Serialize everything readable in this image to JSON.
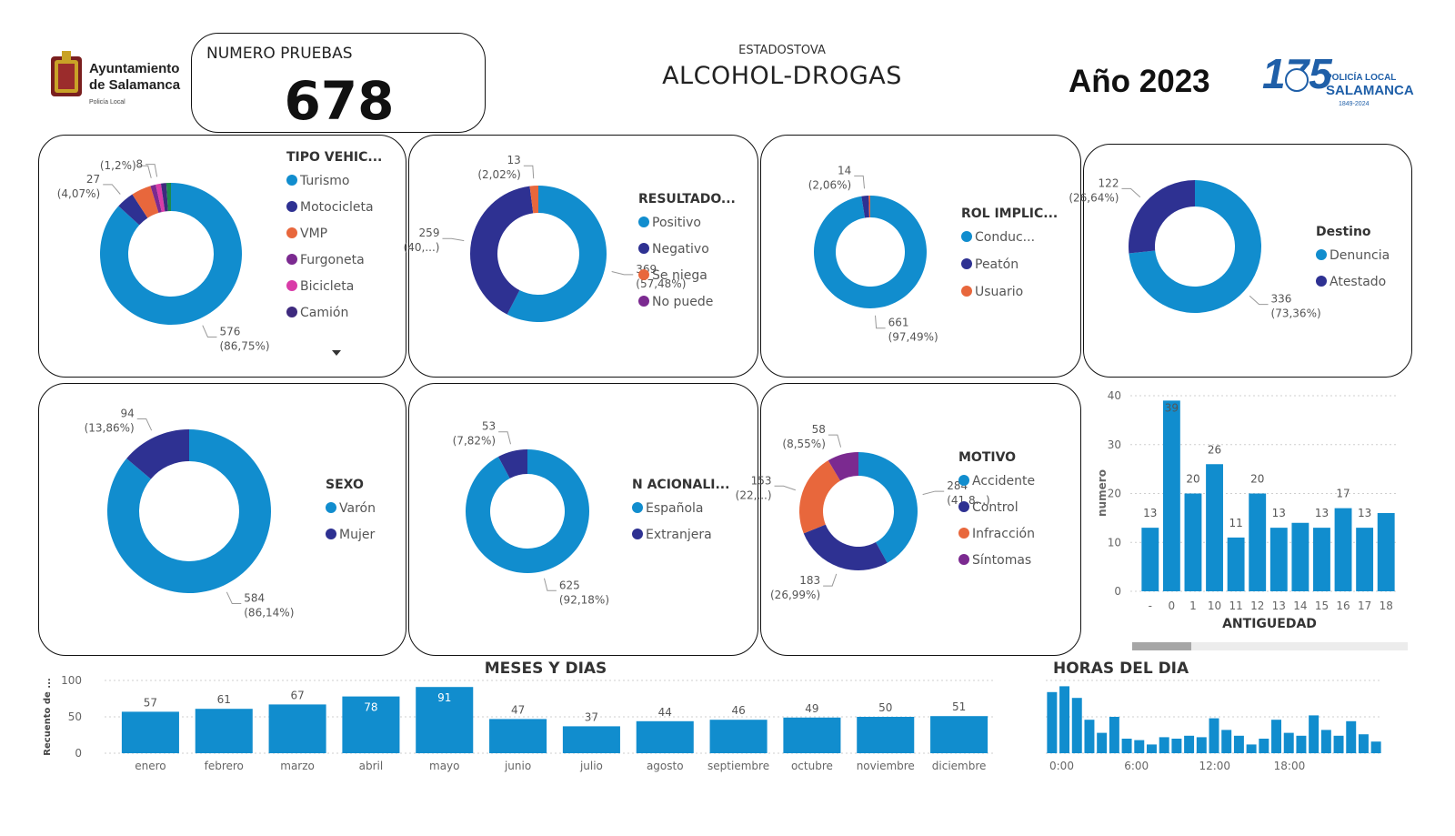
{
  "header": {
    "org_line1": "Ayuntamiento",
    "org_line2": "de Salamanca",
    "org_line3": "Policía Local",
    "kpi_label": "NUMERO PRUEBAS",
    "kpi_value": "678",
    "subtitle": "ESTADOSTOVA",
    "title": "ALCOHOL-DROGAS",
    "year": "Año 2023",
    "right_logo_line1": "POLICÍA LOCAL",
    "right_logo_line2": "SALAMANCA",
    "right_logo_line3": "1849-2024",
    "right_logo_number": "175"
  },
  "colors": {
    "blue": "#118DCE",
    "navy": "#2E3192",
    "orange": "#E8673C",
    "purple": "#7B2A90",
    "pink": "#D93CA8",
    "dark_purple": "#3E2A7E",
    "green": "#1F8A4C"
  },
  "chart_data": [
    {
      "type": "pie",
      "id": "tipo",
      "legend_title": "TIPO VEHIC...",
      "slices": [
        {
          "name": "Turismo",
          "value": 576,
          "label": "576",
          "pct": "(86,75%)",
          "color": "#118DCE"
        },
        {
          "name": "Motocicleta",
          "value": 27,
          "label": "27",
          "pct": "(4,07%)",
          "color": "#2E3192"
        },
        {
          "name": "VMP",
          "value": 30,
          "label": "",
          "pct": "",
          "color": "#E8673C"
        },
        {
          "name": "Furgoneta",
          "value": 8,
          "label": "(1,2%)",
          "pct": "",
          "color": "#7B2A90"
        },
        {
          "name": "Bicicleta",
          "value": 8,
          "label": "8",
          "pct": "",
          "color": "#D93CA8"
        },
        {
          "name": "Camión",
          "value": 8,
          "label": "",
          "pct": "",
          "color": "#3E2A7E"
        },
        {
          "name": "",
          "value": 7,
          "label": "",
          "pct": "",
          "color": "#1F8A4C"
        }
      ],
      "legend": [
        "Turismo",
        "Motocicleta",
        "VMP",
        "Furgoneta",
        "Bicicleta",
        "Camión"
      ]
    },
    {
      "type": "pie",
      "id": "resultado",
      "legend_title": "RESULTADO...",
      "slices": [
        {
          "name": "Positivo",
          "value": 369,
          "label": "369",
          "pct": "(57,48%)",
          "color": "#118DCE"
        },
        {
          "name": "Negativo",
          "value": 259,
          "label": "259",
          "pct": "(40,...)",
          "color": "#2E3192"
        },
        {
          "name": "Se niega",
          "value": 13,
          "label": "13",
          "pct": "(2,02%)",
          "color": "#E8673C"
        }
      ],
      "legend": [
        "Positivo",
        "Negativo",
        "Se niega",
        "No puede"
      ],
      "legend_colors": [
        "#118DCE",
        "#2E3192",
        "#E8673C",
        "#7B2A90"
      ]
    },
    {
      "type": "pie",
      "id": "rol",
      "legend_title": "ROL IMPLIC...",
      "slices": [
        {
          "name": "Conduc...",
          "value": 661,
          "label": "661",
          "pct": "(97,49%)",
          "color": "#118DCE"
        },
        {
          "name": "Peatón",
          "value": 14,
          "label": "14",
          "pct": "(2,06%)",
          "color": "#2E3192"
        },
        {
          "name": "Usuario",
          "value": 3,
          "label": "",
          "pct": "",
          "color": "#E8673C"
        }
      ],
      "legend": [
        "Conduc...",
        "Peatón",
        "Usuario"
      ],
      "legend_colors": [
        "#118DCE",
        "#2E3192",
        "#E8673C"
      ]
    },
    {
      "type": "pie",
      "id": "destino",
      "legend_title": "Destino",
      "slices": [
        {
          "name": "Denuncia",
          "value": 336,
          "label": "336",
          "pct": "(73,36%)",
          "color": "#118DCE"
        },
        {
          "name": "Atestado",
          "value": 122,
          "label": "122",
          "pct": "(26,64%)",
          "color": "#2E3192"
        }
      ],
      "legend": [
        "Denuncia",
        "Atestado"
      ],
      "legend_colors": [
        "#118DCE",
        "#2E3192"
      ]
    },
    {
      "type": "pie",
      "id": "sexo",
      "legend_title": "SEXO",
      "slices": [
        {
          "name": "Varón",
          "value": 584,
          "label": "584",
          "pct": "(86,14%)",
          "color": "#118DCE"
        },
        {
          "name": "Mujer",
          "value": 94,
          "label": "94",
          "pct": "(13,86%)",
          "color": "#2E3192"
        }
      ],
      "legend": [
        "Varón",
        "Mujer"
      ],
      "legend_colors": [
        "#118DCE",
        "#2E3192"
      ]
    },
    {
      "type": "pie",
      "id": "nacionalidad",
      "legend_title": "N ACIONALI...",
      "slices": [
        {
          "name": "Española",
          "value": 625,
          "label": "625",
          "pct": "(92,18%)",
          "color": "#118DCE"
        },
        {
          "name": "Extranjera",
          "value": 53,
          "label": "53",
          "pct": "(7,82%)",
          "color": "#2E3192"
        }
      ],
      "legend": [
        "Española",
        "Extranjera"
      ],
      "legend_colors": [
        "#118DCE",
        "#2E3192"
      ]
    },
    {
      "type": "pie",
      "id": "motivo",
      "legend_title": "MOTIVO",
      "slices": [
        {
          "name": "Accidente",
          "value": 284,
          "label": "284",
          "pct": "(41,8...)",
          "color": "#118DCE"
        },
        {
          "name": "Control",
          "value": 183,
          "label": "183",
          "pct": "(26,99%)",
          "color": "#2E3192"
        },
        {
          "name": "Infracción",
          "value": 153,
          "label": "153",
          "pct": "(22,...)",
          "color": "#E8673C"
        },
        {
          "name": "Síntomas",
          "value": 58,
          "label": "58",
          "pct": "(8,55%)",
          "color": "#7B2A90"
        }
      ],
      "legend": [
        "Accidente",
        "Control",
        "Infracción",
        "Síntomas"
      ],
      "legend_colors": [
        "#118DCE",
        "#2E3192",
        "#E8673C",
        "#7B2A90"
      ]
    },
    {
      "type": "bar",
      "id": "antiguedad",
      "title": "",
      "xlabel": "ANTIGUEDAD",
      "ylabel": "numero",
      "ylim": [
        0,
        40
      ],
      "yticks": [
        0,
        10,
        20,
        30,
        40
      ],
      "categories": [
        "-",
        "0",
        "1",
        "10",
        "11",
        "12",
        "13",
        "14",
        "15",
        "16",
        "17",
        "18"
      ],
      "values": [
        13,
        39,
        20,
        26,
        11,
        20,
        13,
        14,
        13,
        17,
        13,
        16
      ],
      "labels": [
        "13",
        "39",
        "20",
        "26",
        "11",
        "20",
        "13",
        "",
        "13",
        "17",
        "13",
        ""
      ]
    },
    {
      "type": "bar",
      "id": "meses",
      "title": "MESES Y DIAS",
      "xlabel": "",
      "ylabel": "Recuento de ...",
      "ylim": [
        0,
        100
      ],
      "yticks": [
        0,
        50,
        100
      ],
      "categories": [
        "enero",
        "febrero",
        "marzo",
        "abril",
        "mayo",
        "junio",
        "julio",
        "agosto",
        "septiembre",
        "octubre",
        "noviembre",
        "diciembre"
      ],
      "values": [
        57,
        61,
        67,
        78,
        91,
        47,
        37,
        44,
        46,
        49,
        50,
        51
      ]
    },
    {
      "type": "bar",
      "id": "horas",
      "title": "HORAS DEL DIA",
      "xlabel": "",
      "ylabel": "",
      "xticks": [
        "0:00",
        "6:00",
        "12:00",
        "18:00"
      ],
      "values": [
        42,
        46,
        38,
        23,
        14,
        25,
        10,
        9,
        6,
        11,
        10,
        12,
        11,
        24,
        16,
        12,
        6,
        10,
        23,
        14,
        12,
        26,
        16,
        12,
        22,
        13,
        8
      ]
    }
  ]
}
